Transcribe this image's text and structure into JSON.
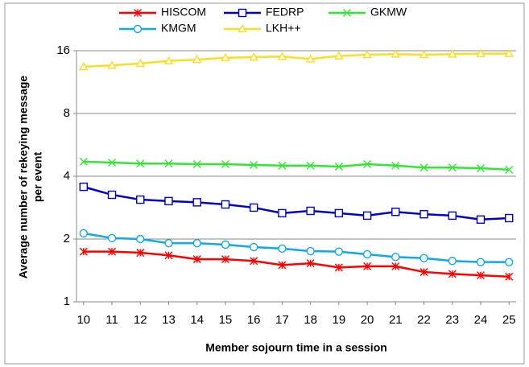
{
  "chart_data": {
    "type": "line",
    "xlabel": "Member sojourn time in a session",
    "ylabel": [
      "Average number of rekeying message",
      "per event"
    ],
    "x": [
      10,
      11,
      12,
      13,
      14,
      15,
      16,
      17,
      18,
      19,
      20,
      21,
      22,
      23,
      24,
      25
    ],
    "xlim": [
      9.75,
      25.25
    ],
    "xticks": [
      10,
      11,
      12,
      13,
      14,
      15,
      16,
      17,
      18,
      19,
      20,
      21,
      22,
      23,
      24,
      25
    ],
    "ylim": [
      1,
      16
    ],
    "yticks": [
      1,
      2,
      4,
      8,
      16
    ],
    "yscale": "log2",
    "grid": true,
    "series": [
      {
        "name": "HISCOM",
        "color": "#ff0000",
        "marker": "asterisk",
        "values": [
          1.74,
          1.74,
          1.72,
          1.67,
          1.6,
          1.6,
          1.57,
          1.5,
          1.53,
          1.46,
          1.48,
          1.48,
          1.39,
          1.36,
          1.34,
          1.32
        ]
      },
      {
        "name": "FEDRP",
        "color": "#0000cc",
        "marker": "square",
        "values": [
          3.56,
          3.26,
          3.09,
          3.04,
          3.0,
          2.93,
          2.83,
          2.66,
          2.73,
          2.66,
          2.59,
          2.7,
          2.63,
          2.59,
          2.48,
          2.52
        ]
      },
      {
        "name": "GKMW",
        "color": "#33e633",
        "marker": "x",
        "values": [
          4.7,
          4.65,
          4.6,
          4.6,
          4.57,
          4.57,
          4.53,
          4.5,
          4.5,
          4.45,
          4.57,
          4.5,
          4.4,
          4.4,
          4.37,
          4.3
        ]
      },
      {
        "name": "KMGM",
        "color": "#10a8e8",
        "marker": "circle",
        "values": [
          2.13,
          2.02,
          2.0,
          1.91,
          1.91,
          1.88,
          1.83,
          1.8,
          1.75,
          1.74,
          1.69,
          1.64,
          1.62,
          1.57,
          1.55,
          1.55
        ]
      },
      {
        "name": "LKH++",
        "color": "#ffdd22",
        "marker": "triangle",
        "values": [
          13.4,
          13.6,
          13.9,
          14.3,
          14.5,
          14.8,
          14.9,
          15.0,
          14.6,
          15.1,
          15.3,
          15.4,
          15.3,
          15.4,
          15.5,
          15.5
        ]
      }
    ]
  }
}
